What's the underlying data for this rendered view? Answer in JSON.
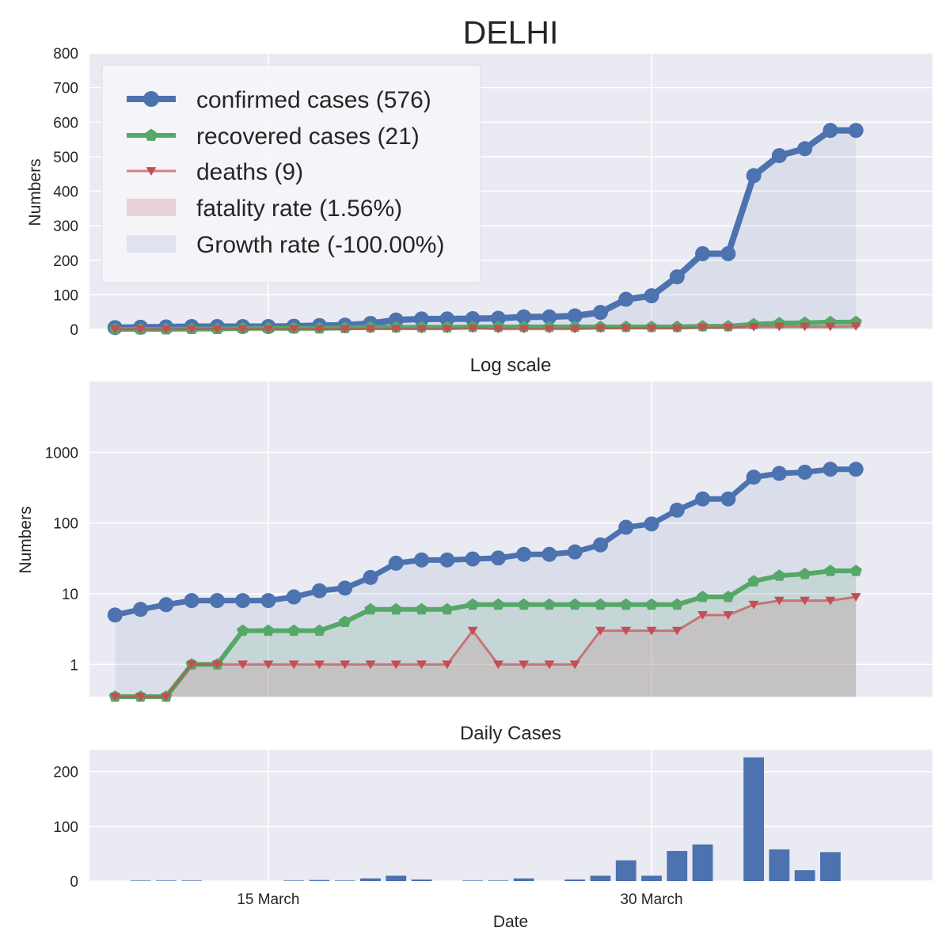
{
  "chart_data": [
    {
      "panel": "linear",
      "type": "line",
      "title": "DELHI",
      "ylabel": "Numbers",
      "ylim": [
        0,
        800
      ],
      "yticks": [
        0,
        100,
        200,
        300,
        400,
        500,
        600,
        700,
        800
      ],
      "x": [
        "2020-03-09",
        "2020-03-10",
        "2020-03-11",
        "2020-03-12",
        "2020-03-13",
        "2020-03-14",
        "2020-03-15",
        "2020-03-16",
        "2020-03-17",
        "2020-03-18",
        "2020-03-19",
        "2020-03-20",
        "2020-03-21",
        "2020-03-22",
        "2020-03-23",
        "2020-03-24",
        "2020-03-25",
        "2020-03-26",
        "2020-03-27",
        "2020-03-28",
        "2020-03-29",
        "2020-03-30",
        "2020-03-31",
        "2020-04-01",
        "2020-04-02",
        "2020-04-03",
        "2020-04-04",
        "2020-04-05",
        "2020-04-06",
        "2020-04-07"
      ],
      "series": [
        {
          "name": "confirmed cases (576)",
          "color": "#4c72b0",
          "marker": "circle",
          "values": [
            5,
            6,
            7,
            8,
            8,
            8,
            8,
            9,
            11,
            12,
            17,
            27,
            30,
            30,
            31,
            32,
            36,
            36,
            39,
            49,
            87,
            97,
            152,
            219,
            219,
            445,
            503,
            523,
            576,
            576
          ]
        },
        {
          "name": "recovered cases (21)",
          "color": "#55a868",
          "marker": "pentagon",
          "values": [
            0,
            0,
            0,
            1,
            1,
            3,
            3,
            3,
            3,
            4,
            6,
            6,
            6,
            6,
            7,
            7,
            7,
            7,
            7,
            7,
            7,
            7,
            7,
            9,
            9,
            15,
            18,
            19,
            21,
            21
          ]
        },
        {
          "name": "deaths (9)",
          "color": "#c44e52",
          "marker": "triangle-down",
          "values": [
            0,
            0,
            0,
            1,
            1,
            1,
            1,
            1,
            1,
            1,
            1,
            1,
            1,
            1,
            3,
            1,
            1,
            1,
            1,
            3,
            3,
            3,
            3,
            5,
            5,
            7,
            8,
            8,
            8,
            9
          ]
        }
      ],
      "legend": {
        "placement": "upper-left",
        "entries": [
          "confirmed cases (576)",
          "recovered cases (21)",
          "deaths (9)",
          "fatality rate (1.56%)",
          "Growth rate (-100.00%)"
        ],
        "patch_colors": [
          "#4c72b0",
          "#55a868",
          "#c44e52",
          "#e8d1d8",
          "#dfe3f0"
        ]
      },
      "grid": true
    },
    {
      "panel": "log",
      "type": "line",
      "title": "Log scale",
      "ylabel": "Numbers",
      "yscale": "log",
      "ylim": [
        0.35,
        10000
      ],
      "yticks": [
        1,
        10,
        100,
        1000
      ],
      "ytick_labels": [
        "1",
        "10",
        "100",
        "1000"
      ],
      "x": [
        "2020-03-09",
        "2020-03-10",
        "2020-03-11",
        "2020-03-12",
        "2020-03-13",
        "2020-03-14",
        "2020-03-15",
        "2020-03-16",
        "2020-03-17",
        "2020-03-18",
        "2020-03-19",
        "2020-03-20",
        "2020-03-21",
        "2020-03-22",
        "2020-03-23",
        "2020-03-24",
        "2020-03-25",
        "2020-03-26",
        "2020-03-27",
        "2020-03-28",
        "2020-03-29",
        "2020-03-30",
        "2020-03-31",
        "2020-04-01",
        "2020-04-02",
        "2020-04-03",
        "2020-04-04",
        "2020-04-05",
        "2020-04-06",
        "2020-04-07"
      ],
      "series": [
        {
          "name": "confirmed cases (576)",
          "values": [
            5,
            6,
            7,
            8,
            8,
            8,
            8,
            9,
            11,
            12,
            17,
            27,
            30,
            30,
            31,
            32,
            36,
            36,
            39,
            49,
            87,
            97,
            152,
            219,
            219,
            445,
            503,
            523,
            576,
            576
          ]
        },
        {
          "name": "recovered cases (21)",
          "values": [
            0,
            0,
            0,
            1,
            1,
            3,
            3,
            3,
            3,
            4,
            6,
            6,
            6,
            6,
            7,
            7,
            7,
            7,
            7,
            7,
            7,
            7,
            7,
            9,
            9,
            15,
            18,
            19,
            21,
            21
          ]
        },
        {
          "name": "deaths (9)",
          "values": [
            0,
            0,
            0,
            1,
            1,
            1,
            1,
            1,
            1,
            1,
            1,
            1,
            1,
            1,
            3,
            1,
            1,
            1,
            1,
            3,
            3,
            3,
            3,
            5,
            5,
            7,
            8,
            8,
            8,
            9
          ]
        }
      ],
      "grid": true
    },
    {
      "panel": "daily",
      "type": "bar",
      "title": "Daily Cases",
      "xlabel": "Date",
      "ylim": [
        0,
        240
      ],
      "yticks": [
        0,
        100,
        200
      ],
      "x": [
        "2020-03-10",
        "2020-03-11",
        "2020-03-12",
        "2020-03-13",
        "2020-03-14",
        "2020-03-15",
        "2020-03-16",
        "2020-03-17",
        "2020-03-18",
        "2020-03-19",
        "2020-03-20",
        "2020-03-21",
        "2020-03-22",
        "2020-03-23",
        "2020-03-24",
        "2020-03-25",
        "2020-03-26",
        "2020-03-27",
        "2020-03-28",
        "2020-03-29",
        "2020-03-30",
        "2020-03-31",
        "2020-04-01",
        "2020-04-02",
        "2020-04-03",
        "2020-04-04",
        "2020-04-05",
        "2020-04-06"
      ],
      "values": [
        1,
        1,
        1,
        0,
        0,
        0,
        1,
        2,
        1,
        5,
        10,
        3,
        0,
        1,
        1,
        5,
        0,
        3,
        10,
        38,
        10,
        55,
        67,
        0,
        226,
        58,
        20,
        53
      ],
      "color": "#4c72b0",
      "grid": true
    }
  ],
  "xaxis": {
    "ticks": [
      {
        "label": "15 March",
        "date": "2020-03-15"
      },
      {
        "label": "30 March",
        "date": "2020-03-30"
      }
    ],
    "xlim": [
      "2020-03-08",
      "2020-04-10"
    ],
    "label": "Date"
  },
  "colors": {
    "background": "#ffffff",
    "axes_face": "#eaeaf2",
    "grid": "#ffffff",
    "confirmed": "#4c72b0",
    "recovered": "#55a868",
    "deaths": "#c44e52"
  }
}
